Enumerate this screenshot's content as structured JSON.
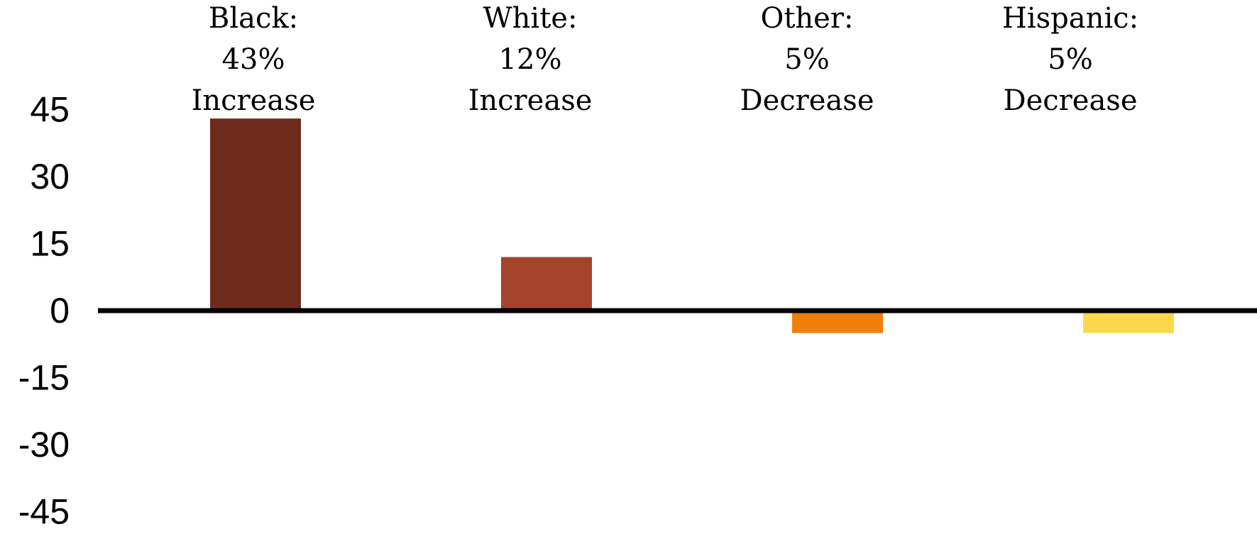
{
  "chart_data": {
    "type": "bar",
    "categories": [
      "Black",
      "White",
      "Other",
      "Hispanic"
    ],
    "values": [
      43,
      12,
      -5,
      -5
    ],
    "category_labels": [
      [
        "Black:",
        "43%",
        "Increase"
      ],
      [
        "White:",
        "12%",
        "Increase"
      ],
      [
        "Other:",
        "5%",
        "Decrease"
      ],
      [
        "Hispanic:",
        "5%",
        "Decrease"
      ]
    ],
    "colors": [
      "#6e2b1c",
      "#a5432b",
      "#f07f09",
      "#fdd94a"
    ],
    "axis_color": "#000000",
    "ylim": [
      -45,
      45
    ],
    "yticks": [
      45,
      30,
      15,
      0,
      -15,
      -30,
      -45
    ],
    "ytick_labels": [
      "45",
      "30",
      "15",
      "0",
      "-15",
      "-30",
      "-45"
    ],
    "grid": false,
    "legend": "none"
  }
}
